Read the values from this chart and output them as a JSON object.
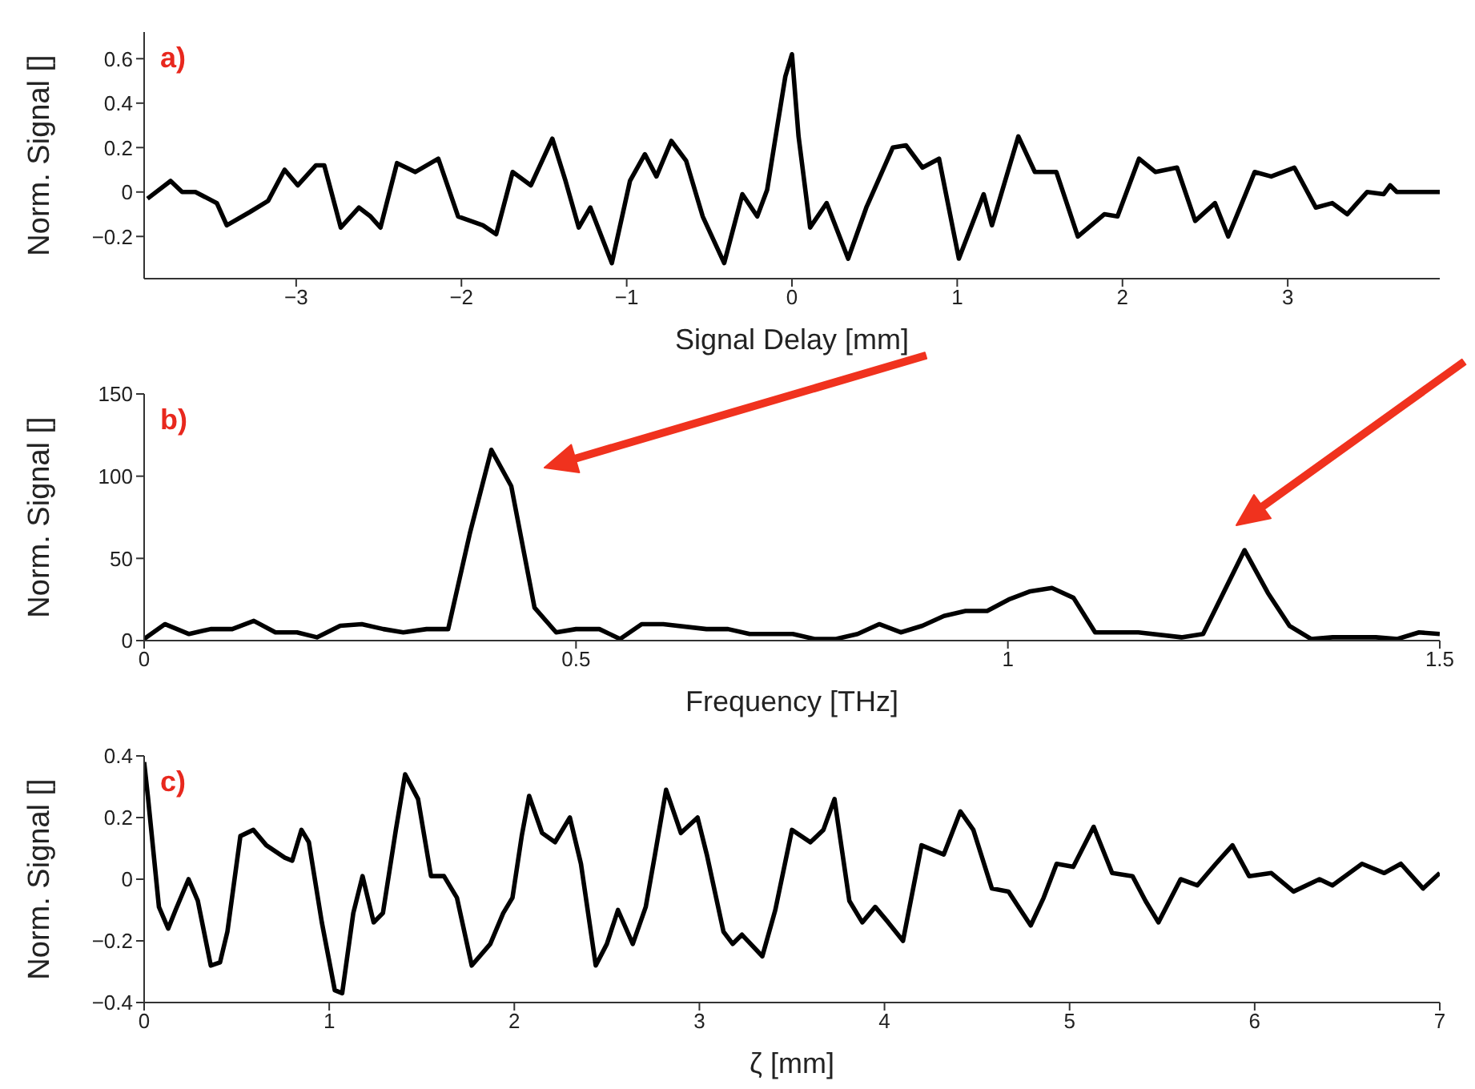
{
  "chart_data": [
    {
      "type": "line",
      "xlabel": "Signal Delay [mm]",
      "ylabel": "Norm. Signal []",
      "annotations": [
        "a)"
      ],
      "xlim": [
        -3.92,
        3.92
      ],
      "xticks": [
        -3,
        -2,
        -1,
        0,
        1,
        2,
        3
      ],
      "ylim": [
        -0.39,
        0.72
      ],
      "yticks": [
        -0.2,
        0,
        0.2,
        0.4,
        0.6
      ],
      "grid": false,
      "legend": false,
      "series": [
        {
          "color": "#000000",
          "x": [
            -3.9,
            -3.76,
            -3.69,
            -3.61,
            -3.48,
            -3.42,
            -3.28,
            -3.17,
            -3.07,
            -2.99,
            -2.88,
            -2.83,
            -2.73,
            -2.62,
            -2.55,
            -2.49,
            -2.39,
            -2.28,
            -2.14,
            -2.02,
            -1.87,
            -1.79,
            -1.69,
            -1.58,
            -1.45,
            -1.37,
            -1.29,
            -1.22,
            -1.09,
            -0.98,
            -0.89,
            -0.82,
            -0.73,
            -0.64,
            -0.54,
            -0.41,
            -0.3,
            -0.21,
            -0.15,
            -0.09,
            -0.04,
            0.0,
            0.04,
            0.11,
            0.21,
            0.34,
            0.45,
            0.61,
            0.69,
            0.79,
            0.89,
            1.01,
            1.16,
            1.21,
            1.37,
            1.47,
            1.6,
            1.73,
            1.89,
            1.97,
            2.1,
            2.2,
            2.33,
            2.44,
            2.56,
            2.64,
            2.8,
            2.9,
            3.04,
            3.17,
            3.27,
            3.36,
            3.48,
            3.58,
            3.62,
            3.66,
            3.92
          ],
          "values": [
            -0.03,
            0.05,
            0.0,
            0.0,
            -0.05,
            -0.15,
            -0.09,
            -0.04,
            0.1,
            0.03,
            0.12,
            0.12,
            -0.16,
            -0.07,
            -0.11,
            -0.16,
            0.13,
            0.09,
            0.15,
            -0.11,
            -0.15,
            -0.19,
            0.09,
            0.03,
            0.24,
            0.05,
            -0.16,
            -0.07,
            -0.32,
            0.05,
            0.17,
            0.07,
            0.23,
            0.14,
            -0.11,
            -0.32,
            -0.01,
            -0.11,
            0.01,
            0.29,
            0.52,
            0.62,
            0.25,
            -0.16,
            -0.05,
            -0.3,
            -0.07,
            0.2,
            0.21,
            0.11,
            0.15,
            -0.3,
            -0.01,
            -0.15,
            0.25,
            0.09,
            0.09,
            -0.2,
            -0.1,
            -0.11,
            0.15,
            0.09,
            0.11,
            -0.13,
            -0.05,
            -0.2,
            0.09,
            0.07,
            0.11,
            -0.07,
            -0.05,
            -0.1,
            0.0,
            -0.01,
            0.03,
            0.0,
            0.0
          ]
        }
      ]
    },
    {
      "type": "line",
      "xlabel": "Frequency [THz]",
      "ylabel": "Norm. Signal []",
      "annotations": [
        "b)"
      ],
      "xlim": [
        0,
        1.5
      ],
      "xticks": [
        0,
        0.5,
        1,
        1.5
      ],
      "ylim": [
        0,
        150
      ],
      "yticks": [
        0,
        50,
        100,
        150
      ],
      "grid": false,
      "legend": false,
      "series": [
        {
          "color": "#000000",
          "x": [
            0,
            0.024,
            0.052,
            0.077,
            0.102,
            0.127,
            0.152,
            0.177,
            0.2,
            0.227,
            0.252,
            0.277,
            0.3,
            0.327,
            0.352,
            0.377,
            0.402,
            0.425,
            0.452,
            0.477,
            0.5,
            0.527,
            0.551,
            0.576,
            0.601,
            0.651,
            0.676,
            0.701,
            0.751,
            0.776,
            0.801,
            0.826,
            0.851,
            0.876,
            0.901,
            0.926,
            0.951,
            0.976,
            1.001,
            1.026,
            1.051,
            1.076,
            1.101,
            1.151,
            1.201,
            1.226,
            1.274,
            1.301,
            1.326,
            1.351,
            1.376,
            1.426,
            1.451,
            1.476,
            1.5
          ],
          "values": [
            1,
            10,
            4,
            7,
            7,
            12,
            5,
            5,
            2,
            9,
            10,
            7,
            5,
            7,
            7,
            65,
            116,
            94,
            20,
            5,
            7,
            7,
            1,
            10,
            10,
            7,
            7,
            4,
            4,
            1,
            1,
            4,
            10,
            5,
            9,
            15,
            18,
            18,
            25,
            30,
            32,
            26,
            5,
            5,
            2,
            4,
            55,
            29,
            9,
            1,
            2,
            2,
            1,
            5,
            4
          ]
        }
      ]
    },
    {
      "type": "line",
      "xlabel": "ζ [mm]",
      "ylabel": "Norm. Signal []",
      "annotations": [
        "c)"
      ],
      "xlim": [
        0,
        7
      ],
      "xticks": [
        0,
        1,
        2,
        3,
        4,
        5,
        6,
        7
      ],
      "ylim": [
        -0.4,
        0.4
      ],
      "yticks": [
        -0.4,
        -0.2,
        0,
        0.2,
        0.4
      ],
      "grid": false,
      "legend": false,
      "series": [
        {
          "color": "#000000",
          "x": [
            0,
            0.02,
            0.08,
            0.13,
            0.17,
            0.24,
            0.29,
            0.36,
            0.41,
            0.45,
            0.52,
            0.59,
            0.66,
            0.76,
            0.8,
            0.85,
            0.89,
            0.96,
            1.03,
            1.07,
            1.13,
            1.18,
            1.24,
            1.29,
            1.36,
            1.41,
            1.48,
            1.55,
            1.62,
            1.69,
            1.77,
            1.87,
            1.94,
            1.99,
            2.04,
            2.08,
            2.15,
            2.22,
            2.3,
            2.36,
            2.44,
            2.5,
            2.56,
            2.64,
            2.71,
            2.76,
            2.82,
            2.9,
            2.99,
            3.04,
            3.13,
            3.18,
            3.23,
            3.34,
            3.41,
            3.5,
            3.6,
            3.67,
            3.73,
            3.81,
            3.88,
            3.95,
            4.02,
            4.1,
            4.2,
            4.32,
            4.41,
            4.48,
            4.58,
            4.67,
            4.79,
            4.86,
            4.93,
            5.02,
            5.13,
            5.23,
            5.34,
            5.41,
            5.48,
            5.6,
            5.69,
            5.79,
            5.88,
            5.97,
            6.09,
            6.21,
            6.35,
            6.42,
            6.58,
            6.7,
            6.79,
            6.91,
            7
          ],
          "values": [
            0.38,
            0.27,
            -0.09,
            -0.16,
            -0.1,
            0,
            -0.07,
            -0.28,
            -0.27,
            -0.17,
            0.14,
            0.16,
            0.11,
            0.07,
            0.06,
            0.16,
            0.12,
            -0.14,
            -0.36,
            -0.37,
            -0.11,
            0.01,
            -0.14,
            -0.11,
            0.16,
            0.34,
            0.26,
            0.01,
            0.01,
            -0.06,
            -0.28,
            -0.21,
            -0.11,
            -0.06,
            0.14,
            0.27,
            0.15,
            0.12,
            0.2,
            0.05,
            -0.28,
            -0.21,
            -0.1,
            -0.21,
            -0.09,
            0.08,
            0.29,
            0.15,
            0.2,
            0.08,
            -0.17,
            -0.21,
            -0.18,
            -0.25,
            -0.1,
            0.16,
            0.12,
            0.16,
            0.26,
            -0.07,
            -0.14,
            -0.09,
            -0.14,
            -0.2,
            0.11,
            0.08,
            0.22,
            0.16,
            -0.03,
            -0.04,
            -0.15,
            -0.06,
            0.05,
            0.04,
            0.17,
            0.02,
            0.01,
            -0.07,
            -0.14,
            0,
            -0.02,
            0.05,
            0.11,
            0.01,
            0.02,
            -0.04,
            0,
            -0.02,
            0.05,
            0.02,
            0.05,
            -0.03,
            0.02
          ]
        }
      ]
    }
  ]
}
